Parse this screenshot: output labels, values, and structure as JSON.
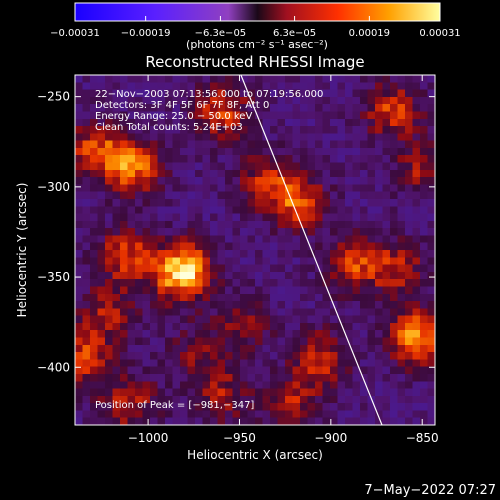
{
  "chart_data": {
    "type": "heatmap",
    "title": "Reconstructed RHESSI Image",
    "xlabel": "Heliocentric X (arcsec)",
    "ylabel": "Heliocentric Y (arcsec)",
    "xlim": [
      -1040,
      -843
    ],
    "ylim": [
      -432,
      -238
    ],
    "x_ticks": [
      -1000,
      -950,
      -900,
      -850
    ],
    "x_tick_labels": [
      "−1000",
      "−950",
      "−900",
      "−850"
    ],
    "y_ticks": [
      -250,
      -300,
      -350,
      -400
    ],
    "y_tick_labels": [
      "−250",
      "−300",
      "−350",
      "−400"
    ],
    "colorbar": {
      "min": -0.00031,
      "max": 0.00031,
      "tick_values": [
        -0.00031,
        -0.00019,
        -6.3e-05,
        6.3e-05,
        0.00019,
        0.00031
      ],
      "tick_labels": [
        "−0.00031",
        "−0.00019",
        "−6.3e−05",
        "6.3e−05",
        "0.00019",
        "0.00031"
      ],
      "unit_label": "(photons cm⁻² s⁻¹ asec⁻²)"
    },
    "annotations": [
      "22−Nov−2003 07:13:56.000 to 07:19:56.000",
      "Detectors: 3F 4F 5F 6F 7F 8F, Att 0",
      "Energy Range: 25.0 − 50.0 keV",
      "Clean    Total counts: 5.24E+03"
    ],
    "peak_label": "Position of Peak = [−981,−347]",
    "peak": {
      "x": -981,
      "y": -347
    },
    "sources": [
      {
        "x": -981,
        "y": -347,
        "amp": 1.0
      },
      {
        "x": -1012,
        "y": -338,
        "amp": 0.55
      },
      {
        "x": -1030,
        "y": -280,
        "amp": 0.55
      },
      {
        "x": -1008,
        "y": -288,
        "amp": 0.7
      },
      {
        "x": -960,
        "y": -258,
        "amp": 0.55
      },
      {
        "x": -936,
        "y": -296,
        "amp": 0.45
      },
      {
        "x": -918,
        "y": -308,
        "amp": 0.6
      },
      {
        "x": -866,
        "y": -258,
        "amp": 0.55
      },
      {
        "x": -850,
        "y": -290,
        "amp": 0.4
      },
      {
        "x": -888,
        "y": -343,
        "amp": 0.55
      },
      {
        "x": -853,
        "y": -383,
        "amp": 0.75
      },
      {
        "x": -863,
        "y": -345,
        "amp": 0.45
      },
      {
        "x": -1035,
        "y": -395,
        "amp": 0.55
      },
      {
        "x": -948,
        "y": -375,
        "amp": 0.35
      },
      {
        "x": -905,
        "y": -395,
        "amp": 0.5
      },
      {
        "x": -922,
        "y": -420,
        "amp": 0.45
      },
      {
        "x": -1010,
        "y": -420,
        "amp": 0.45
      },
      {
        "x": -960,
        "y": -415,
        "amp": 0.4
      },
      {
        "x": -1022,
        "y": -370,
        "amp": 0.4
      },
      {
        "x": -975,
        "y": -392,
        "amp": 0.3
      }
    ],
    "limb": [
      [
        -950,
        -236
      ],
      [
        -872,
        -432
      ]
    ],
    "colors": {
      "background": "#000000",
      "text": "#ffffff",
      "limb": "#ffffff"
    }
  },
  "footer": {
    "timestamp": "7−May−2022 07:27"
  }
}
